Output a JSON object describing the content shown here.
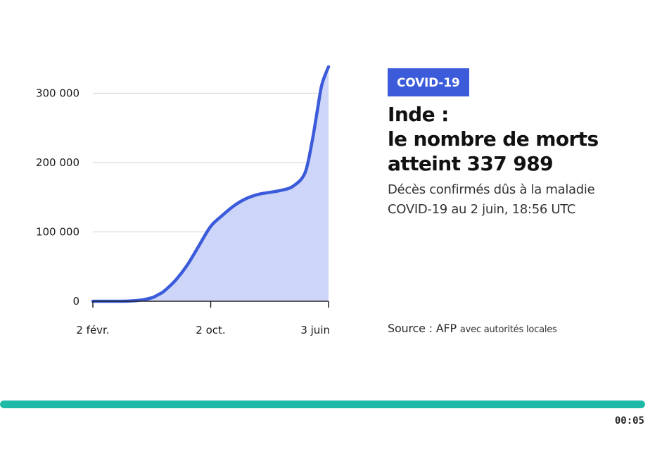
{
  "badge": "COVID-19",
  "headline": {
    "line1": "Inde :",
    "line2": "le nombre de morts",
    "line3": "atteint 337 989"
  },
  "subtitle": "Décès confirmés dûs à la maladie COVID-19 au 2 juin, 18:56 UTC",
  "source": {
    "main": "Source : AFP",
    "detail": "avec autorités locales"
  },
  "player": {
    "time": "00:05",
    "progress": 1.0,
    "progress_color": "#1fb9a8"
  },
  "colors": {
    "accent": "#3b5bdb",
    "line": "#3b5bdb",
    "area": "#cdd6f9",
    "grid": "#d0d0d0"
  },
  "chart_data": {
    "type": "area",
    "title": "",
    "xlabel": "",
    "ylabel": "",
    "ylim": [
      0,
      340000
    ],
    "yticks": [
      0,
      100000,
      200000,
      300000
    ],
    "ytick_labels": [
      "0",
      "100 000",
      "200 000",
      "300 000"
    ],
    "xticks": [
      0,
      0.5,
      1
    ],
    "xtick_labels": [
      "2 févr.",
      "2 oct.",
      "3 juin"
    ],
    "grid": true,
    "series": [
      {
        "x": [
          0,
          0.05,
          0.1,
          0.15,
          0.2,
          0.25,
          0.28,
          0.3,
          0.35,
          0.4,
          0.45,
          0.5,
          0.55,
          0.6,
          0.65,
          0.7,
          0.75,
          0.8,
          0.85,
          0.9,
          0.93,
          0.95,
          0.97,
          0.99,
          1.0
        ],
        "y": [
          0,
          0,
          0,
          200,
          1500,
          5000,
          10000,
          14000,
          30000,
          52000,
          80000,
          108000,
          124000,
          138000,
          148000,
          154000,
          157000,
          160000,
          166000,
          185000,
          230000,
          270000,
          310000,
          330000,
          338000
        ]
      }
    ]
  }
}
